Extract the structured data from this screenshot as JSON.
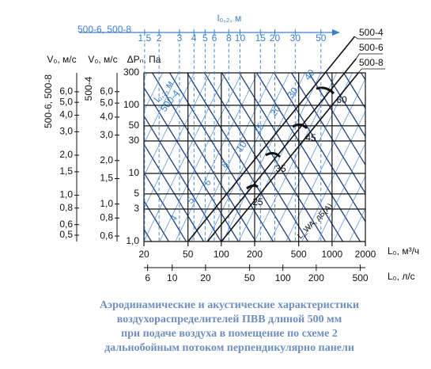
{
  "chart_data": {
    "type": "line",
    "log": true,
    "xlabel": "L₀, м³/ч",
    "ylabel": "ΔPₙ, Па",
    "xlim": [
      20,
      2000
    ],
    "ylim": [
      1,
      300
    ],
    "xticks": [
      20,
      50,
      100,
      200,
      500,
      1000,
      2000
    ],
    "yticks": [
      {
        "value": 1,
        "label": "1,0"
      },
      3,
      5,
      10,
      30,
      50,
      100,
      300
    ],
    "x2label": "L₀, л/с",
    "x2lim": [
      5.556,
      555.6
    ],
    "x2ticks": [
      6,
      10,
      20,
      50,
      100,
      200,
      500
    ],
    "x3label": "l₀,₂, м",
    "x3name": "500-6, 500-8",
    "x3lim": [
      1.48,
      121
    ],
    "x3ticks": [
      {
        "value": 1.5,
        "label": "1,5"
      },
      2,
      3,
      4,
      5,
      6,
      8,
      10,
      15,
      20,
      30,
      50
    ],
    "v1label": "V₀, м/с",
    "v1name": "500-6, 500-8",
    "v1lim": [
      0.448,
      8.33
    ],
    "v1ticks": [
      {
        "value": 6,
        "label": "6,0"
      },
      {
        "value": 5,
        "label": "5,0"
      },
      {
        "value": 4,
        "label": "4,0"
      },
      {
        "value": 3,
        "label": "3,0"
      },
      {
        "value": 2,
        "label": "2,0"
      },
      {
        "value": 1.5,
        "label": "1,5"
      },
      {
        "value": 1,
        "label": "1,0"
      },
      {
        "value": 0.8,
        "label": "0,8"
      },
      {
        "value": 0.6,
        "label": "0,6"
      },
      {
        "value": 0.5,
        "label": "0,5"
      }
    ],
    "v2label": "V₀, м/с",
    "v2name": "500-4",
    "v2lim": [
      0.55,
      8.1
    ],
    "v2ticks": [
      {
        "value": 6,
        "label": "6,0"
      },
      {
        "value": 5,
        "label": "5,0"
      },
      {
        "value": 4,
        "label": "4,0"
      },
      {
        "value": 3,
        "label": "3,0"
      },
      {
        "value": 2,
        "label": "2,0"
      },
      {
        "value": 1.5,
        "label": "1,5"
      },
      {
        "value": 1,
        "label": "1,0"
      },
      {
        "value": 0.8,
        "label": "0,8"
      },
      {
        "value": 0.6,
        "label": "0,6"
      }
    ],
    "series": [
      {
        "name": "500-4",
        "color": "#111111",
        "x": [
          50,
          1600
        ],
        "values": [
          1,
          1024
        ]
      },
      {
        "name": "500-6",
        "color": "#111111",
        "x": [
          75,
          1650
        ],
        "values": [
          1,
          484
        ]
      },
      {
        "name": "500-8",
        "color": "#111111",
        "x": [
          100,
          1730
        ],
        "values": [
          1,
          300
        ]
      }
    ],
    "sound_labels": [
      "25",
      "35",
      "45",
      "60"
    ],
    "sound_title": "L_WA, дБ(A)",
    "range_labels": [
      "4",
      "5",
      "6",
      "8",
      "10",
      "15",
      "20",
      "30",
      "40"
    ],
    "range_title": "l₀,₂, м",
    "range_name": "500-4"
  },
  "caption": [
    "Аэродинамические и акустические характеристики",
    "воздухораспределителей ПВВ длиной 500 мм",
    "при подаче воздуха в помещение по схеме 2",
    "дальнобойным потоком перпендикулярно панели"
  ]
}
